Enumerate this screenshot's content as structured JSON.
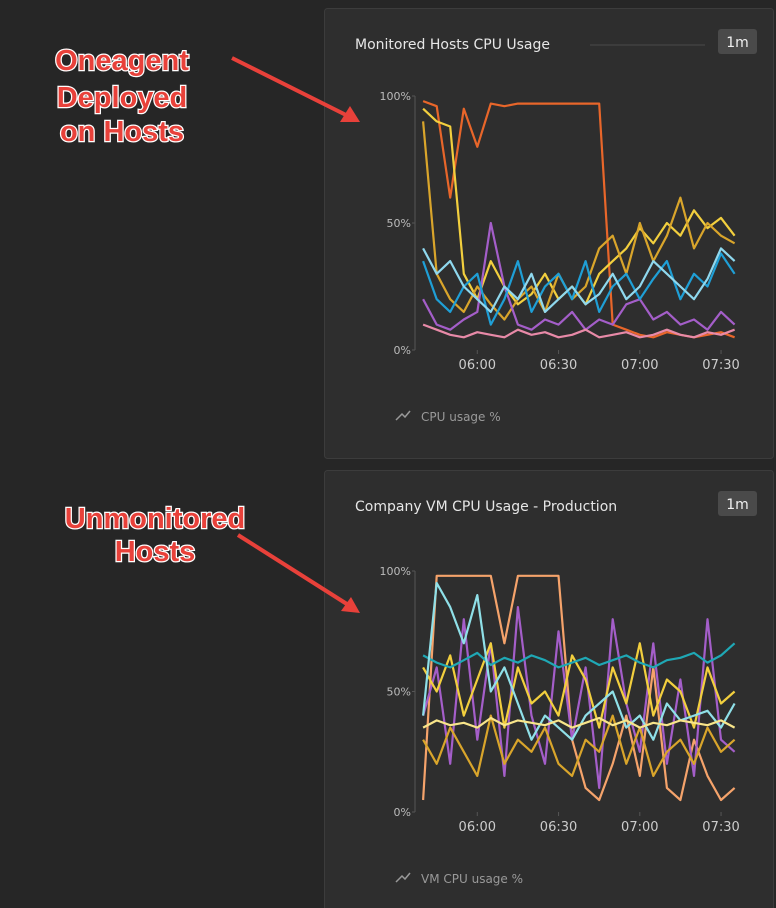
{
  "annotations": [
    {
      "lines": [
        "Oneagent",
        "Deployed",
        "on Hosts"
      ]
    },
    {
      "lines": [
        "Unmonitored",
        "Hosts"
      ]
    }
  ],
  "chart_data": [
    {
      "type": "line",
      "title": "Monitored Hosts CPU Usage",
      "interval": "1m",
      "legend": "CPU usage %",
      "x": [
        "05:40",
        "05:45",
        "05:50",
        "05:55",
        "06:00",
        "06:05",
        "06:10",
        "06:15",
        "06:20",
        "06:25",
        "06:30",
        "06:35",
        "06:40",
        "06:45",
        "06:50",
        "06:55",
        "07:00",
        "07:05",
        "07:10",
        "07:15",
        "07:20",
        "07:25",
        "07:30",
        "07:35"
      ],
      "xlim": [
        "05:37",
        "07:37"
      ],
      "xticks": [
        "06:00",
        "06:30",
        "07:00",
        "07:30"
      ],
      "ylim": [
        0,
        100
      ],
      "yticks": [
        {
          "value": 0,
          "label": "0%"
        },
        {
          "value": 50,
          "label": "50%"
        },
        {
          "value": 100,
          "label": "100%"
        }
      ],
      "series": [
        {
          "color": "#e8662a",
          "values": [
            98,
            96,
            60,
            95,
            80,
            97,
            96,
            97,
            97,
            97,
            97,
            97,
            97,
            97,
            10,
            8,
            6,
            5,
            7,
            6,
            5,
            6,
            7,
            5
          ]
        },
        {
          "color": "#f2cf3e",
          "values": [
            95,
            90,
            88,
            30,
            20,
            35,
            25,
            18,
            22,
            30,
            20,
            25,
            18,
            30,
            35,
            40,
            48,
            42,
            50,
            45,
            55,
            48,
            52,
            45
          ]
        },
        {
          "color": "#d9a52b",
          "values": [
            90,
            30,
            20,
            15,
            25,
            18,
            12,
            20,
            25,
            15,
            30,
            20,
            25,
            40,
            45,
            30,
            50,
            35,
            45,
            60,
            40,
            50,
            45,
            42
          ]
        },
        {
          "color": "#a45ec9",
          "values": [
            20,
            10,
            8,
            12,
            15,
            50,
            25,
            10,
            8,
            12,
            10,
            15,
            8,
            12,
            10,
            18,
            20,
            12,
            15,
            10,
            12,
            8,
            15,
            10
          ]
        },
        {
          "color": "#1f9fd6",
          "values": [
            35,
            20,
            15,
            25,
            30,
            10,
            20,
            35,
            15,
            25,
            30,
            20,
            35,
            15,
            25,
            30,
            20,
            28,
            35,
            20,
            30,
            25,
            38,
            30
          ]
        },
        {
          "color": "#8fd8ee",
          "values": [
            40,
            30,
            35,
            25,
            20,
            15,
            25,
            20,
            30,
            15,
            20,
            25,
            18,
            22,
            30,
            20,
            25,
            35,
            30,
            25,
            20,
            28,
            40,
            35
          ]
        },
        {
          "color": "#e88aa8",
          "values": [
            10,
            8,
            6,
            5,
            7,
            6,
            5,
            8,
            6,
            7,
            5,
            6,
            8,
            5,
            6,
            7,
            5,
            6,
            8,
            6,
            5,
            7,
            6,
            8
          ]
        }
      ]
    },
    {
      "type": "line",
      "title": "Company VM CPU Usage - Production",
      "interval": "1m",
      "legend": "VM CPU usage %",
      "x": [
        "05:40",
        "05:45",
        "05:50",
        "05:55",
        "06:00",
        "06:05",
        "06:10",
        "06:15",
        "06:20",
        "06:25",
        "06:30",
        "06:35",
        "06:40",
        "06:45",
        "06:50",
        "06:55",
        "07:00",
        "07:05",
        "07:10",
        "07:15",
        "07:20",
        "07:25",
        "07:30",
        "07:35"
      ],
      "xlim": [
        "05:37",
        "07:37"
      ],
      "xticks": [
        "06:00",
        "06:30",
        "07:00",
        "07:30"
      ],
      "ylim": [
        0,
        100
      ],
      "yticks": [
        {
          "value": 0,
          "label": "0%"
        },
        {
          "value": 50,
          "label": "50%"
        },
        {
          "value": 100,
          "label": "100%"
        }
      ],
      "series": [
        {
          "color": "#f5a36b",
          "values": [
            5,
            98,
            98,
            98,
            98,
            98,
            70,
            98,
            98,
            98,
            98,
            30,
            10,
            5,
            20,
            40,
            15,
            60,
            10,
            5,
            30,
            15,
            5,
            10
          ]
        },
        {
          "color": "#a45ec9",
          "values": [
            40,
            60,
            20,
            80,
            30,
            70,
            15,
            85,
            40,
            20,
            75,
            30,
            60,
            10,
            80,
            45,
            25,
            70,
            20,
            55,
            15,
            80,
            30,
            25
          ]
        },
        {
          "color": "#f2cf3e",
          "values": [
            60,
            50,
            65,
            40,
            55,
            70,
            35,
            60,
            45,
            50,
            40,
            65,
            55,
            35,
            60,
            45,
            70,
            40,
            55,
            50,
            35,
            60,
            45,
            50
          ]
        },
        {
          "color": "#1fa8b5",
          "values": [
            65,
            62,
            60,
            63,
            66,
            61,
            64,
            62,
            65,
            63,
            60,
            62,
            64,
            61,
            63,
            65,
            62,
            60,
            63,
            64,
            66,
            62,
            65,
            70
          ]
        },
        {
          "color": "#8fe0e8",
          "values": [
            40,
            95,
            85,
            70,
            90,
            50,
            60,
            45,
            30,
            40,
            35,
            30,
            40,
            45,
            50,
            35,
            40,
            30,
            45,
            38,
            40,
            42,
            35,
            45
          ]
        },
        {
          "color": "#d9a52b",
          "values": [
            30,
            20,
            35,
            25,
            15,
            40,
            20,
            30,
            25,
            35,
            20,
            15,
            30,
            25,
            40,
            20,
            35,
            15,
            25,
            30,
            20,
            35,
            25,
            30
          ]
        },
        {
          "color": "#f8e58a",
          "values": [
            35,
            38,
            36,
            37,
            35,
            39,
            36,
            38,
            37,
            36,
            38,
            35,
            37,
            39,
            36,
            38,
            35,
            37,
            36,
            38,
            37,
            36,
            38,
            35
          ]
        }
      ]
    }
  ]
}
